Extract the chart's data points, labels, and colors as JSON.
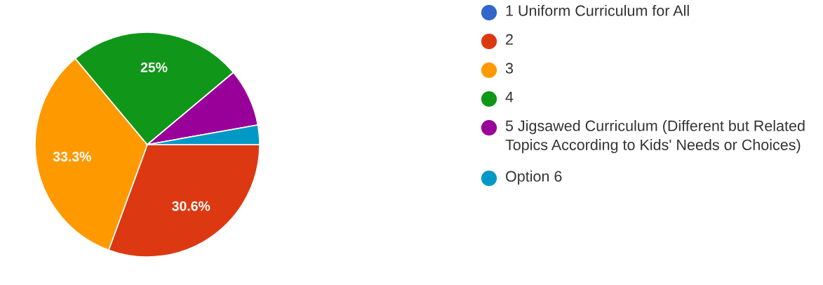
{
  "chart_data": {
    "type": "pie",
    "categories": [
      "1 Uniform Curriculum for All",
      "2",
      "3",
      "4",
      "5 Jigsawed Curriculum (Different but Related Topics According to Kids' Needs or Choices)",
      "Option 6"
    ],
    "values": [
      0,
      30.6,
      33.3,
      25,
      8.3,
      2.8
    ],
    "colors": [
      "#3366cc",
      "#dc3912",
      "#ff9900",
      "#109618",
      "#990099",
      "#0099c6"
    ],
    "value_labels": [
      null,
      "30.6%",
      "33.3%",
      "25%",
      null,
      null
    ],
    "legend": "right"
  }
}
